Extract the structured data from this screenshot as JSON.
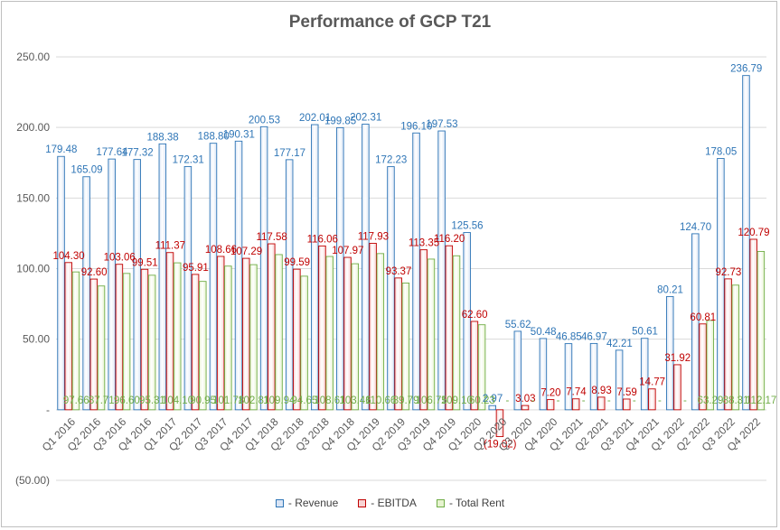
{
  "chart_data": {
    "type": "bar",
    "title": "Performance of GCP T21",
    "xlabel": "",
    "ylabel": "",
    "ylim": [
      -50,
      250
    ],
    "y_ticks": [
      "250.00",
      "200.00",
      "150.00",
      "100.00",
      "50.00",
      "-",
      "(50.00)"
    ],
    "y_tick_values": [
      250,
      200,
      150,
      100,
      50,
      0,
      -50
    ],
    "grid": true,
    "legend_position": "bottom",
    "categories": [
      "Q1 2016",
      "Q2 2016",
      "Q3 2016",
      "Q4 2016",
      "Q1 2017",
      "Q2 2017",
      "Q3 2017",
      "Q4 2017",
      "Q1 2018",
      "Q2 2018",
      "Q3 2018",
      "Q4 2018",
      "Q1 2019",
      "Q2 2019",
      "Q3 2019",
      "Q4 2019",
      "Q1 2020",
      "Q2 2020",
      "Q3 2020",
      "Q4 2020",
      "Q1 2021",
      "Q2 2021",
      "Q3 2021",
      "Q4 2021",
      "Q1 2022",
      "Q2 2022",
      "Q3 2022",
      "Q4 2022"
    ],
    "series": [
      {
        "name": "- Revenue",
        "color": "#2e75b6",
        "fill": "#dae5f5",
        "values": [
          179.48,
          165.09,
          177.64,
          177.32,
          188.38,
          172.31,
          188.8,
          190.31,
          200.53,
          177.17,
          202.01,
          199.85,
          202.31,
          172.23,
          196.1,
          197.53,
          125.56,
          2.97,
          55.62,
          50.48,
          46.85,
          46.97,
          42.21,
          50.61,
          80.21,
          124.7,
          178.05,
          236.79
        ],
        "labels": [
          "179.48",
          "165.09",
          "177.64",
          "177.32",
          "188.38",
          "172.31",
          "188.80",
          "190.31",
          "200.53",
          "177.17",
          "202.01",
          "199.85",
          "202.31",
          "172.23",
          "196.10",
          "197.53",
          "125.56",
          "2.97",
          "55.62",
          "50.48",
          "46.85",
          "46.97",
          "42.21",
          "50.61",
          "80.21",
          "124.70",
          "178.05",
          "236.79"
        ]
      },
      {
        "name": "- EBITDA",
        "color": "#c00000",
        "fill": "#f8d3d3",
        "values": [
          104.3,
          92.6,
          103.06,
          99.51,
          111.37,
          95.91,
          108.66,
          107.29,
          117.58,
          99.59,
          116.06,
          107.97,
          117.93,
          93.37,
          113.35,
          116.2,
          62.6,
          -19.02,
          3.03,
          7.2,
          7.74,
          8.93,
          7.59,
          14.77,
          31.92,
          60.81,
          92.73,
          120.79
        ],
        "labels": [
          "104.30",
          "92.60",
          "103.06",
          "99.51",
          "111.37",
          "95.91",
          "108.66",
          "107.29",
          "117.58",
          "99.59",
          "116.06",
          "107.97",
          "117.93",
          "93.37",
          "113.35",
          "116.20",
          "62.60",
          "(19.02)",
          "3.03",
          "7.20",
          "7.74",
          "8.93",
          "7.59",
          "14.77",
          "31.92",
          "60.81",
          "92.73",
          "120.79"
        ]
      },
      {
        "name": "- Total Rent",
        "color": "#70ad47",
        "fill": "#e6f3cf",
        "values": [
          97.66,
          87.71,
          96.6,
          95.31,
          104.1,
          90.95,
          101.78,
          102.81,
          109.94,
          94.65,
          108.61,
          103.46,
          110.66,
          89.79,
          106.75,
          109.1,
          60.23,
          0,
          0,
          0,
          0,
          0,
          0,
          0,
          0,
          63.29,
          88.31,
          112.17
        ],
        "labels": [
          "97.66",
          "87.71",
          "96.60",
          "95.31",
          "104.10",
          "90.95",
          "101.78",
          "102.81",
          "109.94",
          "94.65",
          "108.61",
          "103.46",
          "110.66",
          "89.79",
          "106.75",
          "109.10",
          "60.23",
          "-",
          "-",
          "-",
          "-",
          "-",
          "-",
          "-",
          "-",
          "63.29",
          "88.31",
          "112.17"
        ]
      }
    ]
  }
}
